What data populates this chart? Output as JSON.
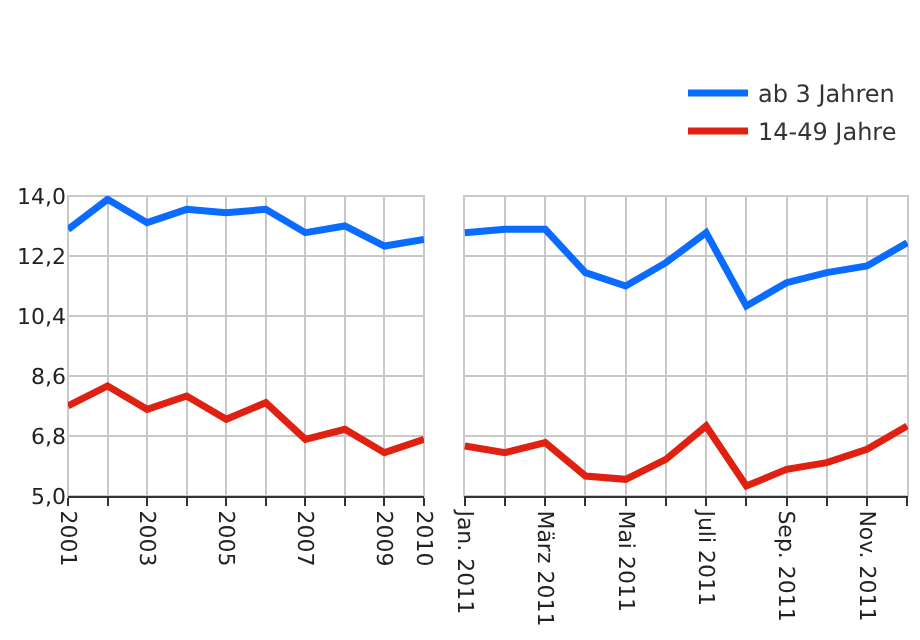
{
  "chart_data": [
    {
      "type": "line",
      "x": [
        2001,
        2002,
        2003,
        2004,
        2005,
        2006,
        2007,
        2008,
        2009,
        2010
      ],
      "xlim": [
        2001,
        2010
      ],
      "xticks": [
        2001,
        {
          "value": 2002,
          "label": null
        },
        2003,
        {
          "value": 2004,
          "label": null
        },
        2005,
        {
          "value": 2006,
          "label": null
        },
        2007,
        {
          "value": 2008,
          "label": null
        },
        2009,
        2010
      ],
      "ylim": [
        5,
        14
      ],
      "yticks": [
        {
          "value": 5,
          "label": "5,0"
        },
        {
          "value": 6.8,
          "label": "6,8"
        },
        {
          "value": 8.6,
          "label": "8,6"
        },
        {
          "value": 10.4,
          "label": "10,4"
        },
        {
          "value": 12.2,
          "label": "12,2"
        },
        {
          "value": 14,
          "label": "14,0"
        }
      ],
      "grid": true,
      "marker": "none",
      "line_style": "solid",
      "series": [
        {
          "color": "#0a6cff",
          "values": [
            13.0,
            13.9,
            13.2,
            13.6,
            13.5,
            13.6,
            12.9,
            13.1,
            12.5,
            12.7
          ]
        },
        {
          "color": "#e02010",
          "values": [
            7.7,
            8.3,
            7.6,
            8.0,
            7.3,
            7.8,
            6.7,
            7.0,
            6.3,
            6.7
          ]
        }
      ]
    },
    {
      "type": "line",
      "categories": [
        "Jan. 2011",
        null,
        "März 2011",
        null,
        "Mai 2011",
        null,
        "Juli 2011",
        null,
        "Sep. 2011",
        null,
        "Nov. 2011",
        null
      ],
      "ylim": [
        5,
        14
      ],
      "yticks": [
        5,
        6.8,
        8.6,
        10.4,
        12.2,
        14
      ],
      "tick_labels": "x",
      "grid": true,
      "marker": "none",
      "line_style": "solid",
      "legend": "top right",
      "series": [
        {
          "name": "ab 3 Jahren",
          "color": "#0a6cff",
          "values": [
            12.9,
            13.0,
            13.0,
            11.7,
            11.3,
            12.0,
            12.9,
            10.7,
            11.4,
            11.7,
            11.9,
            12.6
          ]
        },
        {
          "name": "14-49 Jahre",
          "color": "#e02010",
          "values": [
            6.5,
            6.3,
            6.6,
            5.6,
            5.5,
            6.1,
            7.1,
            5.3,
            5.8,
            6.0,
            6.4,
            7.1
          ]
        }
      ]
    }
  ]
}
